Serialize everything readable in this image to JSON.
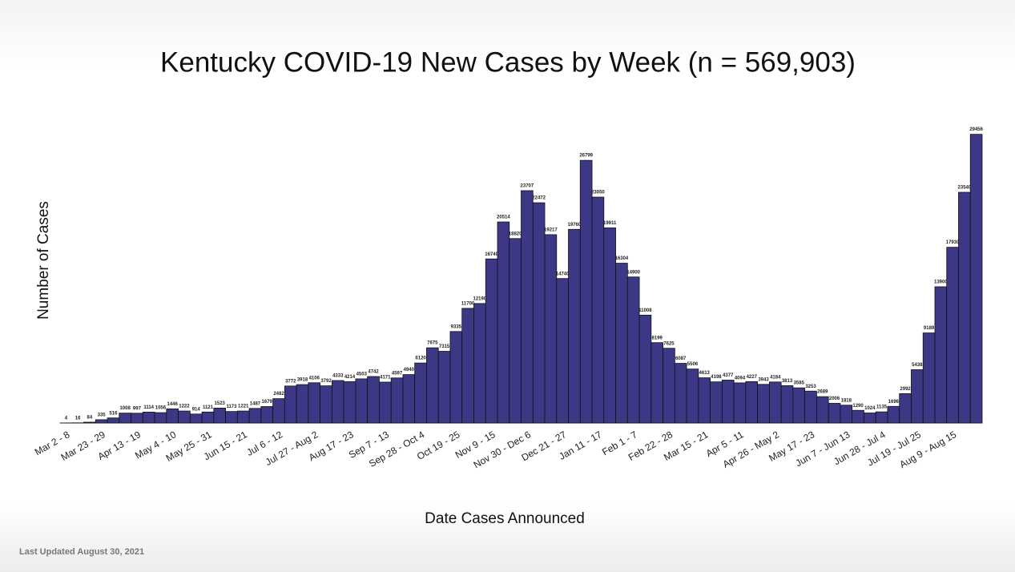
{
  "chart_data": {
    "type": "bar",
    "title": "Kentucky COVID-19 New Cases by Week (n = 569,903)",
    "y_label": "Number of Cases",
    "x_label": "Date Cases Announced",
    "footnote": "Last Updated August 30, 2021",
    "color": "#3d3886",
    "ylim": [
      0,
      30000
    ],
    "categories": [
      "Mar 2 - 8",
      null,
      null,
      "Mar 23 - 29",
      null,
      null,
      "Apr 13 - 19",
      null,
      null,
      "May 4 - 10",
      null,
      null,
      "May 25 - 31",
      null,
      null,
      "Jun 15 - 21",
      null,
      null,
      "Jul 6 - 12",
      null,
      null,
      "Jul 27 - Aug 2",
      null,
      null,
      "Aug 17 - 23",
      null,
      null,
      "Sep 7 - 13",
      null,
      null,
      "Sep 28 - Oct 4",
      null,
      null,
      "Oct 19 - 25",
      null,
      null,
      "Nov 9 - 15",
      null,
      null,
      "Nov 30 - Dec 6",
      null,
      null,
      "Dec 21 - 27",
      null,
      null,
      "Jan 11 - 17",
      null,
      null,
      "Feb 1 - 7",
      null,
      null,
      "Feb 22 - 28",
      null,
      null,
      "Mar 15 - 21",
      null,
      null,
      "Apr 5 - 11",
      null,
      null,
      "Apr 26 - May 2",
      null,
      null,
      "May 17 - 23",
      null,
      null,
      "Jun 7 - Jun 13",
      null,
      null,
      "Jun 28 - Jul 4",
      null,
      null,
      "Jul 19 - Jul 25",
      null,
      null,
      "Aug 9 - Aug 15",
      null,
      null
    ],
    "values": [
      4,
      16,
      84,
      335,
      516,
      1008,
      997,
      1114,
      1056,
      1446,
      1222,
      914,
      1121,
      1523,
      1173,
      1221,
      1487,
      1679,
      2482,
      3772,
      3918,
      4106,
      3792,
      4333,
      4214,
      4503,
      4742,
      4171,
      4597,
      4940,
      6120,
      7675,
      7315,
      9335,
      11700,
      12190,
      16740,
      20514,
      18820,
      23707,
      22472,
      19217,
      14740,
      19760,
      26799,
      23050,
      19911,
      16304,
      14900,
      11008,
      8199,
      7625,
      6087,
      5506,
      4613,
      4198,
      4377,
      4094,
      4227,
      3943,
      4184,
      3813,
      3585,
      3253,
      2689,
      2006,
      1818,
      1290,
      1024,
      1135,
      1696,
      2992,
      5438,
      9189,
      13900,
      17930,
      23540,
      29456
    ]
  }
}
